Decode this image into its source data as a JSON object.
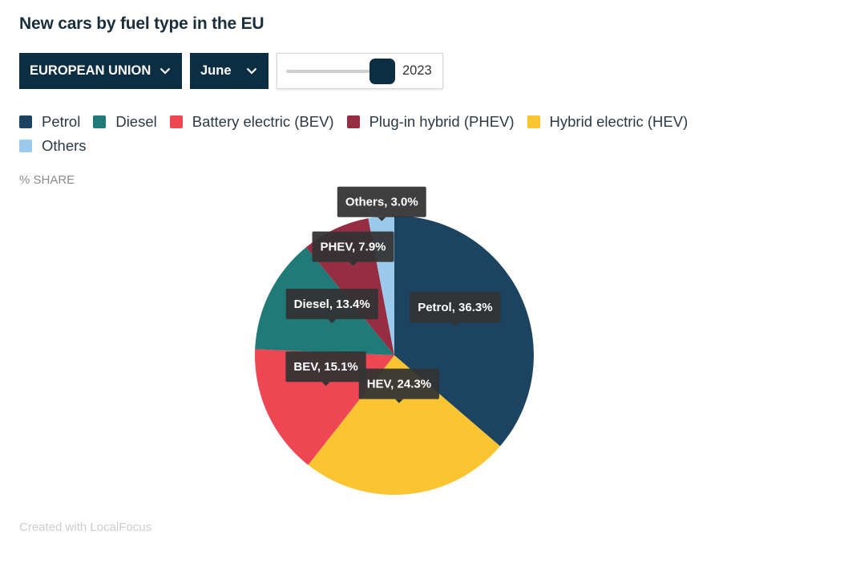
{
  "title": "New cars by fuel type in the EU",
  "controls": {
    "region": "EUROPEAN UNION",
    "month": "June",
    "year": "2023"
  },
  "unit_label": "% SHARE",
  "credit": "Created with LocalFocus",
  "colors": {
    "accent": "#0c2e42",
    "tooltip": "#333333"
  },
  "chart_data": {
    "type": "pie",
    "legend_position": "top",
    "slices": [
      {
        "legend": "Petrol",
        "label": "Petrol, 36.3%",
        "value": 36.3,
        "color": "#1c4461"
      },
      {
        "legend": "Hybrid electric (HEV)",
        "label": "HEV, 24.3%",
        "value": 24.3,
        "color": "#fac531"
      },
      {
        "legend": "Battery electric (BEV)",
        "label": "BEV, 15.1%",
        "value": 15.1,
        "color": "#ee4753"
      },
      {
        "legend": "Diesel",
        "label": "Diesel, 13.4%",
        "value": 13.4,
        "color": "#1f7a78"
      },
      {
        "legend": "Plug-in hybrid (PHEV)",
        "label": "PHEV, 7.9%",
        "value": 7.9,
        "color": "#962e43"
      },
      {
        "legend": "Others",
        "label": "Others, 3.0%",
        "value": 3.0,
        "color": "#9bcbec"
      }
    ],
    "legend_order": [
      "Petrol",
      "Diesel",
      "Battery electric (BEV)",
      "Plug-in hybrid (PHEV)",
      "Hybrid electric (HEV)",
      "Others"
    ]
  }
}
